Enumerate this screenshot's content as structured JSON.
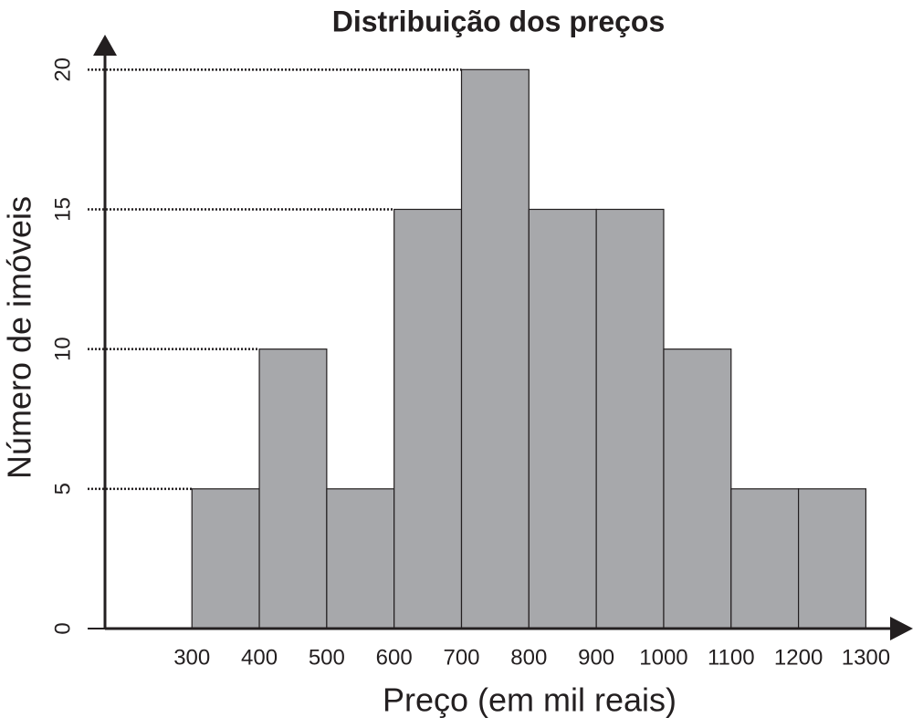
{
  "chart_data": {
    "type": "histogram",
    "title": "Distribuição dos preços",
    "x_label": "Preço (em mil reais)",
    "y_label": "Número de imóveis",
    "bins": [
      300,
      400,
      500,
      600,
      700,
      800,
      900,
      1000,
      1100,
      1200,
      1300
    ],
    "values": [
      5,
      10,
      5,
      15,
      20,
      15,
      15,
      10,
      5,
      5
    ],
    "color": "#a7a8ab",
    "xlim": [
      171,
      1336
    ],
    "ylim": [
      0,
      20.5
    ],
    "yticks": [
      0,
      5,
      10,
      15,
      20
    ],
    "grid": true
  }
}
